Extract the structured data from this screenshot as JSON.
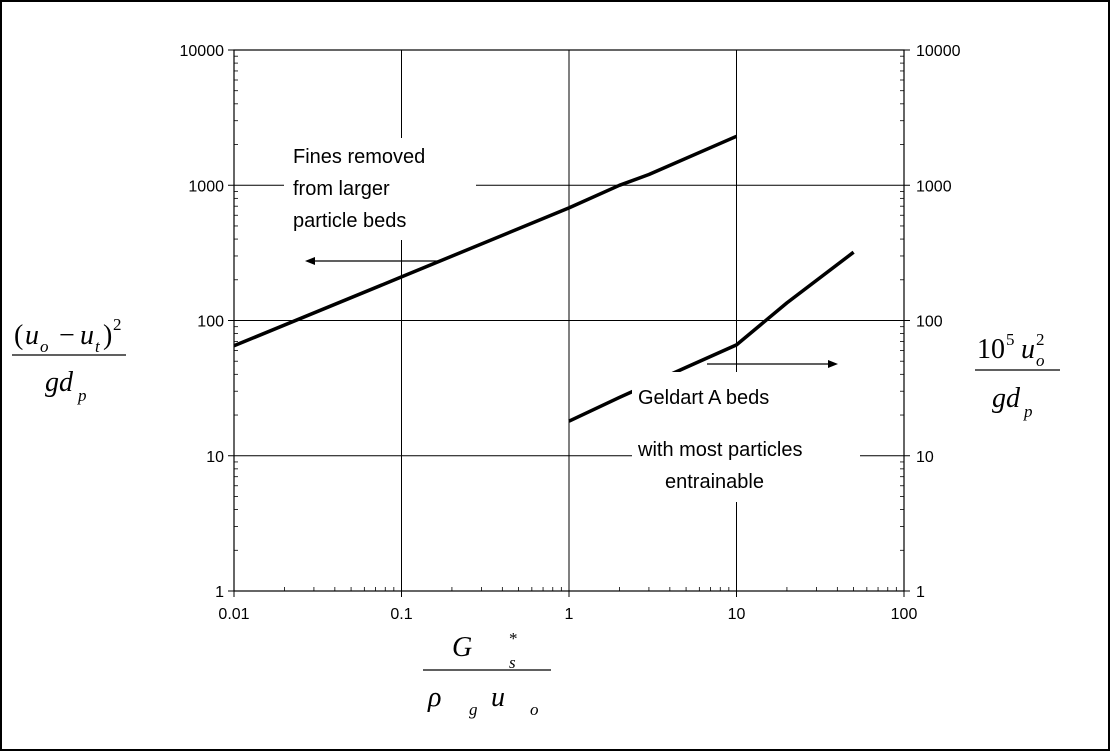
{
  "chart_data": {
    "type": "line",
    "title": "",
    "x_scale": "log",
    "y_scale": "log",
    "xlim": [
      0.01,
      100
    ],
    "ylim": [
      1,
      10000
    ],
    "grid": true,
    "x_ticks": [
      "0.01",
      "0.1",
      "1",
      "10",
      "100"
    ],
    "y_ticks_left": [
      "1",
      "10",
      "100",
      "1000",
      "10000"
    ],
    "y_ticks_right": [
      "1",
      "10",
      "100",
      "1000",
      "10000"
    ],
    "xlabel": {
      "num_main": "G",
      "num_sub": "s",
      "num_sup": "*",
      "den_rho": "ρ",
      "den_rho_sub": "g",
      "den_u": "u",
      "den_u_sub": "o"
    },
    "ylabel_left": {
      "open": "(",
      "u1": "u",
      "u1_sub": "o",
      "minus": "−",
      "u2": "u",
      "u2_sub": "t",
      "close": ")",
      "power": "2",
      "den": "gd",
      "den_sub": "p"
    },
    "ylabel_right": {
      "coef": "10",
      "coef_sup": "5",
      "u": "u",
      "u_sub": "o",
      "u_sup": "2",
      "den": "gd",
      "den_sub": "p"
    },
    "series": [
      {
        "axis": "left",
        "x": [
          0.01,
          0.1,
          1,
          2,
          3,
          10
        ],
        "y": [
          65,
          210,
          680,
          1000,
          1200,
          2300
        ]
      },
      {
        "axis": "right",
        "x": [
          1,
          2,
          5,
          10,
          20,
          50
        ],
        "y": [
          18,
          27,
          45,
          66,
          135,
          320
        ]
      }
    ],
    "annotations": [
      {
        "lines": [
          "Fines removed",
          "from larger",
          "particle beds"
        ],
        "arrow": "left"
      },
      {
        "lines": [
          "Geldart A beds",
          "with most particles",
          "entrainable"
        ],
        "arrow": "right"
      }
    ]
  }
}
